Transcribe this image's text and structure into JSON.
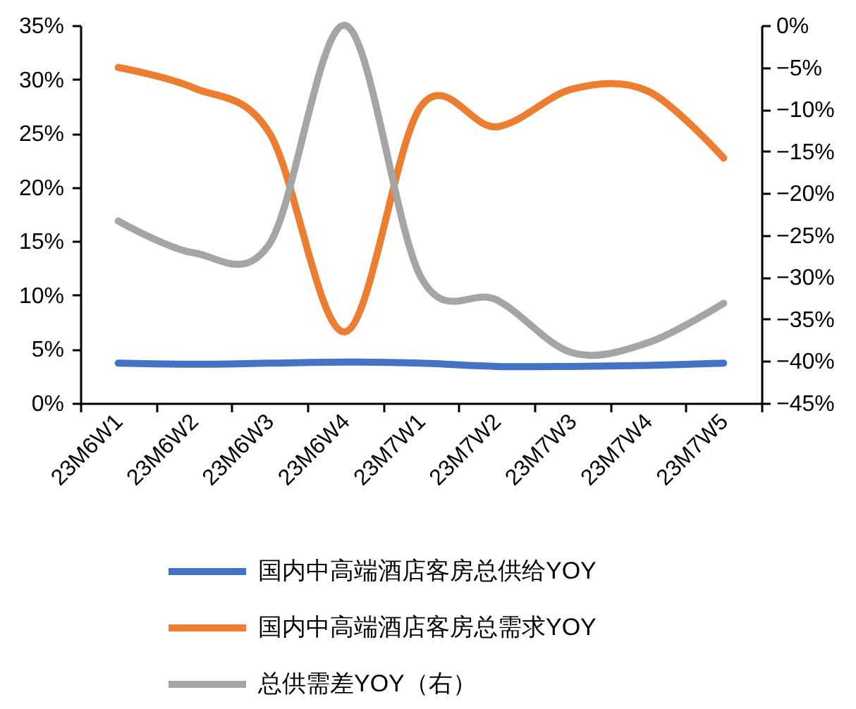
{
  "chart_data": {
    "type": "line",
    "categories": [
      "23M6W1",
      "23M6W2",
      "23M6W3",
      "23M6W4",
      "23M7W1",
      "23M7W2",
      "23M7W3",
      "23M7W4",
      "23M7W5"
    ],
    "series": [
      {
        "name": "国内中高端酒店客房总供给YOY",
        "color": "#4472c4",
        "values": [
          3.7,
          3.6,
          3.7,
          3.8,
          3.7,
          3.4,
          3.4,
          3.5,
          3.7
        ]
      },
      {
        "name": "国内中高端酒店客房总需求YOY",
        "color": "#ed7d31",
        "values": [
          31.1,
          29.2,
          25.0,
          6.6,
          27.5,
          25.6,
          29.1,
          28.9,
          22.7
        ]
      },
      {
        "name": "总供需差YOY（右）",
        "color": "#a5a5a5",
        "axis": "y2",
        "values": [
          -23.3,
          -27.1,
          -26.0,
          0,
          -30.0,
          -32.7,
          -39.0,
          -37.8,
          -33.1
        ]
      }
    ],
    "ylim": [
      0,
      35
    ],
    "yticks": [
      {
        "value": 0,
        "label": "0%"
      },
      {
        "value": 5,
        "label": "5%"
      },
      {
        "value": 10,
        "label": "10%"
      },
      {
        "value": 15,
        "label": "15%"
      },
      {
        "value": 20,
        "label": "20%"
      },
      {
        "value": 25,
        "label": "25%"
      },
      {
        "value": 30,
        "label": "30%"
      },
      {
        "value": 35,
        "label": "35%"
      }
    ],
    "y2lim": [
      -45,
      0
    ],
    "y2ticks": [
      {
        "value": -45,
        "label": "−45%"
      },
      {
        "value": -40,
        "label": "−40%"
      },
      {
        "value": -35,
        "label": "−35%"
      },
      {
        "value": -30,
        "label": "−30%"
      },
      {
        "value": -25,
        "label": "−25%"
      },
      {
        "value": -20,
        "label": "−20%"
      },
      {
        "value": -15,
        "label": "−15%"
      },
      {
        "value": -10,
        "label": "−10%"
      },
      {
        "value": -5,
        "label": "−5%"
      },
      {
        "value": 0,
        "label": "0%"
      }
    ],
    "legend": "bottom",
    "line_style": "solid"
  }
}
